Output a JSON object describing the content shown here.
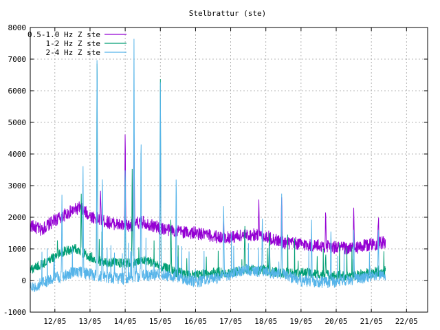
{
  "chart_data": {
    "type": "line",
    "title": "Stelbrattur (ste)",
    "xlabel": "",
    "ylabel": "",
    "ylim": [
      -1000,
      8000
    ],
    "yticks": [
      -1000,
      0,
      1000,
      2000,
      3000,
      4000,
      5000,
      6000,
      7000,
      8000
    ],
    "x_tick_labels": [
      "12/05",
      "13/05",
      "14/05",
      "15/05",
      "16/05",
      "17/05",
      "18/05",
      "19/05",
      "20/05",
      "21/05",
      "22/05"
    ],
    "xlim_days": [
      11.3,
      22.6
    ],
    "grid": true,
    "legend_position": "top-left",
    "series": [
      {
        "name": "0.5-1.0 Hz Z ste",
        "color": "#9400d3",
        "base": [
          [
            11.3,
            1750
          ],
          [
            11.6,
            1600
          ],
          [
            12.0,
            1900
          ],
          [
            12.4,
            2150
          ],
          [
            12.7,
            2300
          ],
          [
            13.0,
            2050
          ],
          [
            13.3,
            1900
          ],
          [
            13.7,
            1800
          ],
          [
            14.0,
            1700
          ],
          [
            14.5,
            1850
          ],
          [
            15.0,
            1650
          ],
          [
            15.5,
            1550
          ],
          [
            16.0,
            1500
          ],
          [
            16.5,
            1400
          ],
          [
            16.8,
            1350
          ],
          [
            17.2,
            1400
          ],
          [
            17.6,
            1450
          ],
          [
            18.0,
            1400
          ],
          [
            18.5,
            1200
          ],
          [
            19.0,
            1150
          ],
          [
            19.5,
            1100
          ],
          [
            20.0,
            1050
          ],
          [
            20.5,
            1000
          ],
          [
            21.0,
            1150
          ],
          [
            21.4,
            1200
          ]
        ],
        "spikes": [
          [
            13.3,
            2700
          ],
          [
            14.0,
            4500
          ],
          [
            14.25,
            5000
          ],
          [
            15.0,
            4000
          ],
          [
            16.8,
            1900
          ],
          [
            17.8,
            2600
          ],
          [
            18.45,
            2600
          ],
          [
            19.7,
            2000
          ],
          [
            20.5,
            2300
          ],
          [
            21.2,
            2000
          ]
        ]
      },
      {
        "name": "1-2 Hz Z ste",
        "color": "#009e73",
        "base": [
          [
            11.3,
            350
          ],
          [
            11.7,
            550
          ],
          [
            12.2,
            900
          ],
          [
            12.6,
            1000
          ],
          [
            13.0,
            750
          ],
          [
            13.3,
            600
          ],
          [
            13.8,
            550
          ],
          [
            14.2,
            550
          ],
          [
            14.6,
            650
          ],
          [
            15.0,
            450
          ],
          [
            15.5,
            250
          ],
          [
            16.0,
            150
          ],
          [
            16.5,
            250
          ],
          [
            17.0,
            250
          ],
          [
            17.5,
            350
          ],
          [
            18.0,
            300
          ],
          [
            18.5,
            250
          ],
          [
            19.0,
            250
          ],
          [
            19.5,
            200
          ],
          [
            20.0,
            150
          ],
          [
            20.5,
            150
          ],
          [
            21.0,
            250
          ],
          [
            21.4,
            300
          ]
        ],
        "spikes": [
          [
            12.75,
            2800
          ],
          [
            13.2,
            7100
          ],
          [
            14.0,
            3500
          ],
          [
            14.2,
            3500
          ],
          [
            15.0,
            6400
          ],
          [
            15.3,
            2000
          ],
          [
            17.4,
            1700
          ],
          [
            18.1,
            1500
          ],
          [
            19.7,
            900
          ]
        ]
      },
      {
        "name": "2-4 Hz Z ste",
        "color": "#56b4e9",
        "base": [
          [
            11.3,
            -250
          ],
          [
            11.6,
            -100
          ],
          [
            12.0,
            100
          ],
          [
            12.3,
            150
          ],
          [
            12.6,
            300
          ],
          [
            13.0,
            200
          ],
          [
            13.5,
            100
          ],
          [
            14.0,
            50
          ],
          [
            14.4,
            150
          ],
          [
            15.0,
            200
          ],
          [
            15.5,
            100
          ],
          [
            16.0,
            -50
          ],
          [
            16.5,
            50
          ],
          [
            17.0,
            200
          ],
          [
            17.5,
            350
          ],
          [
            18.0,
            250
          ],
          [
            18.5,
            200
          ],
          [
            19.0,
            0
          ],
          [
            19.5,
            -50
          ],
          [
            20.0,
            -50
          ],
          [
            20.5,
            50
          ],
          [
            21.0,
            100
          ],
          [
            21.4,
            150
          ]
        ],
        "spikes": [
          [
            12.2,
            2600
          ],
          [
            12.8,
            3700
          ],
          [
            13.2,
            7200
          ],
          [
            13.35,
            3400
          ],
          [
            14.0,
            3700
          ],
          [
            14.25,
            7700
          ],
          [
            14.45,
            4500
          ],
          [
            15.0,
            6300
          ],
          [
            15.45,
            3300
          ],
          [
            16.8,
            2300
          ],
          [
            17.9,
            1900
          ],
          [
            18.45,
            2300
          ],
          [
            19.3,
            1800
          ],
          [
            19.85,
            1500
          ],
          [
            20.5,
            1600
          ],
          [
            21.2,
            1500
          ]
        ]
      }
    ]
  }
}
